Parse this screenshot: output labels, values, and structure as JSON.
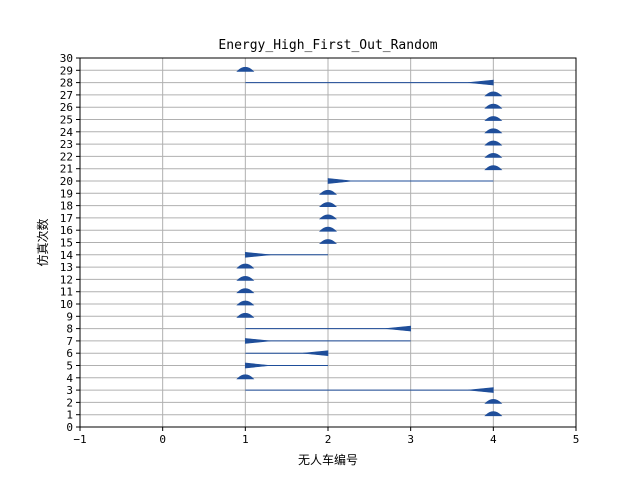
{
  "chart_data": {
    "type": "quiver",
    "title": "Energy_High_First_Out_Random",
    "xlabel": "无人车编号",
    "ylabel": "仿真次数",
    "xlim": [
      -1,
      5
    ],
    "ylim": [
      0,
      30
    ],
    "xticks": [
      "−1",
      "0",
      "1",
      "2",
      "3",
      "4",
      "5"
    ],
    "yticks": [
      "0",
      "1",
      "2",
      "3",
      "4",
      "5",
      "6",
      "7",
      "8",
      "9",
      "10",
      "11",
      "12",
      "13",
      "14",
      "15",
      "16",
      "17",
      "18",
      "19",
      "20",
      "21",
      "22",
      "23",
      "24",
      "25",
      "26",
      "27",
      "28",
      "29",
      "30"
    ],
    "grid": true,
    "color": "#1f4e9a",
    "grid_color": "#b0b0b0",
    "simulations": [
      {
        "y": 1,
        "from": 4,
        "to": 4
      },
      {
        "y": 2,
        "from": 4,
        "to": 4
      },
      {
        "y": 3,
        "from": 4,
        "to": 1
      },
      {
        "y": 4,
        "from": 1,
        "to": 1
      },
      {
        "y": 5,
        "from": 1,
        "to": 2
      },
      {
        "y": 6,
        "from": 2,
        "to": 1
      },
      {
        "y": 7,
        "from": 1,
        "to": 3
      },
      {
        "y": 8,
        "from": 3,
        "to": 1
      },
      {
        "y": 9,
        "from": 1,
        "to": 1
      },
      {
        "y": 10,
        "from": 1,
        "to": 1
      },
      {
        "y": 11,
        "from": 1,
        "to": 1
      },
      {
        "y": 12,
        "from": 1,
        "to": 1
      },
      {
        "y": 13,
        "from": 1,
        "to": 1
      },
      {
        "y": 14,
        "from": 1,
        "to": 2
      },
      {
        "y": 15,
        "from": 2,
        "to": 2
      },
      {
        "y": 16,
        "from": 2,
        "to": 2
      },
      {
        "y": 17,
        "from": 2,
        "to": 2
      },
      {
        "y": 18,
        "from": 2,
        "to": 2
      },
      {
        "y": 19,
        "from": 2,
        "to": 2
      },
      {
        "y": 20,
        "from": 2,
        "to": 4
      },
      {
        "y": 21,
        "from": 4,
        "to": 4
      },
      {
        "y": 22,
        "from": 4,
        "to": 4
      },
      {
        "y": 23,
        "from": 4,
        "to": 4
      },
      {
        "y": 24,
        "from": 4,
        "to": 4
      },
      {
        "y": 25,
        "from": 4,
        "to": 4
      },
      {
        "y": 26,
        "from": 4,
        "to": 4
      },
      {
        "y": 27,
        "from": 4,
        "to": 4
      },
      {
        "y": 28,
        "from": 4,
        "to": 1
      },
      {
        "y": 29,
        "from": 1,
        "to": 1
      }
    ]
  }
}
